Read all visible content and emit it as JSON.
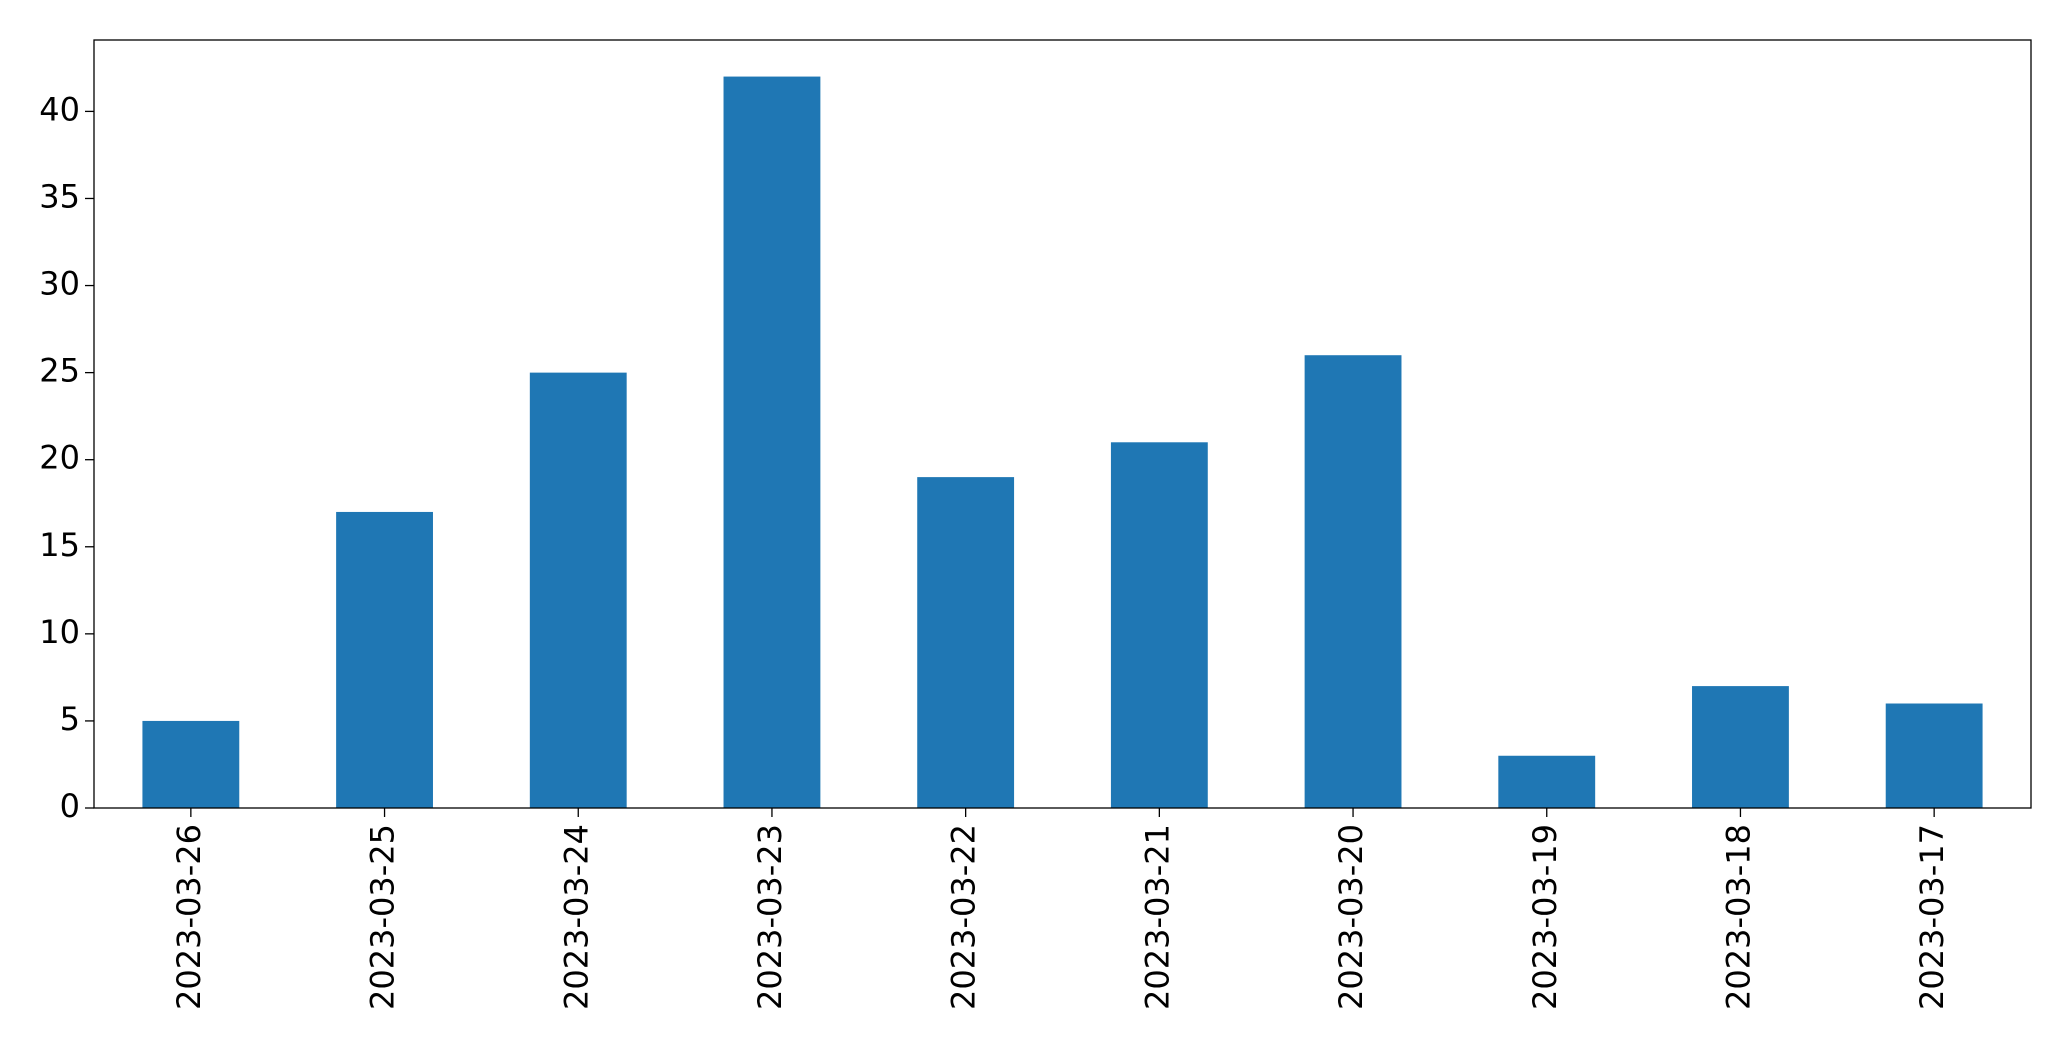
{
  "chart_data": {
    "type": "bar",
    "categories": [
      "2023-03-26",
      "2023-03-25",
      "2023-03-24",
      "2023-03-23",
      "2023-03-22",
      "2023-03-21",
      "2023-03-20",
      "2023-03-19",
      "2023-03-18",
      "2023-03-17"
    ],
    "values": [
      5,
      17,
      25,
      42,
      19,
      21,
      26,
      3,
      7,
      6
    ],
    "color": "#1f77b4",
    "ylim": [
      0,
      44.1
    ],
    "yticks": [
      0,
      5,
      10,
      15,
      20,
      25,
      30,
      35,
      40
    ],
    "grid": false
  }
}
